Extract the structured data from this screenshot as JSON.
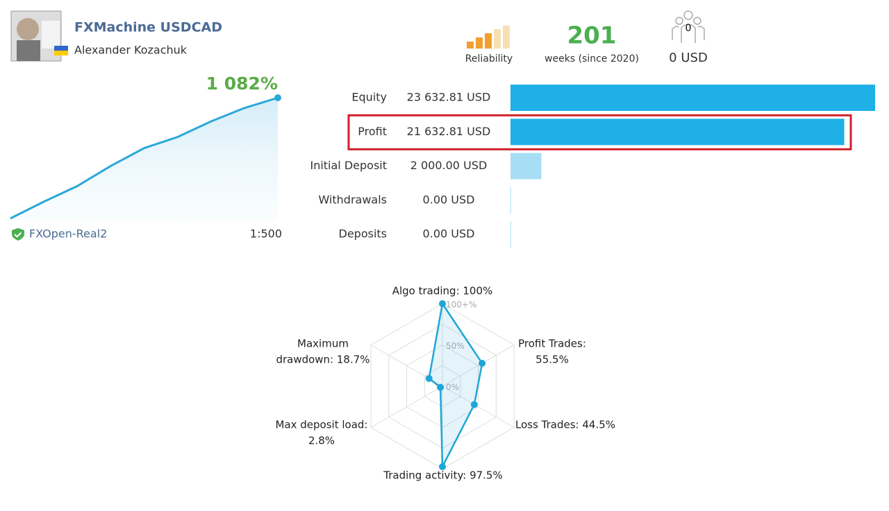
{
  "header": {
    "title": "FXMachine USDCAD",
    "author": "Alexander Kozachuk"
  },
  "stats": {
    "reliability_label": "Reliability",
    "weeks": 201,
    "weeks_label": "weeks (since 2020)",
    "subscribers": 0,
    "subscription_price": "0 USD"
  },
  "growth_chart": {
    "type": "line",
    "title": "1 082%",
    "values": [
      0,
      150,
      290,
      470,
      630,
      730,
      870,
      990,
      1082
    ],
    "color": "#2aa8d8",
    "broker": "FXOpen-Real2",
    "leverage": "1:500"
  },
  "balance_chart": {
    "type": "bar",
    "highlighted_row": 1,
    "rows": [
      {
        "label": "Equity",
        "value": 23632.81,
        "value_label": "23 632.81 USD",
        "color": "#1fb0e8"
      },
      {
        "label": "Profit",
        "value": 21632.81,
        "value_label": "21 632.81 USD",
        "color": "#1fb0e8"
      },
      {
        "label": "Initial Deposit",
        "value": 2000,
        "value_label": "2 000.00 USD",
        "color": "#a8def5"
      },
      {
        "label": "Withdrawals",
        "value": 0,
        "value_label": "0.00 USD",
        "color": "#a8def5"
      },
      {
        "label": "Deposits",
        "value": 0,
        "value_label": "0.00 USD",
        "color": "#a8def5"
      }
    ]
  },
  "radar_chart": {
    "type": "radar",
    "color": "#1ea6d6",
    "rlim": [
      0,
      100
    ],
    "rticks": [
      {
        "value": 0,
        "label": "0%"
      },
      {
        "value": 50,
        "label": "50%"
      },
      {
        "value": 100,
        "label": "100+%"
      }
    ],
    "axes": [
      {
        "label": [
          "Algo trading: 100%"
        ],
        "value": 100
      },
      {
        "label": [
          "Profit Trades:",
          "55.5%"
        ],
        "value": 55.5
      },
      {
        "label": [
          "Loss Trades: 44.5%"
        ],
        "value": 44.5
      },
      {
        "label": [
          "Trading activity: 97.5%"
        ],
        "value": 97.5
      },
      {
        "label": [
          "Max deposit load:",
          "2.8%"
        ],
        "value": 2.8
      },
      {
        "label": [
          "Maximum",
          "drawdown: 18.7%"
        ],
        "value": 18.7
      }
    ]
  }
}
